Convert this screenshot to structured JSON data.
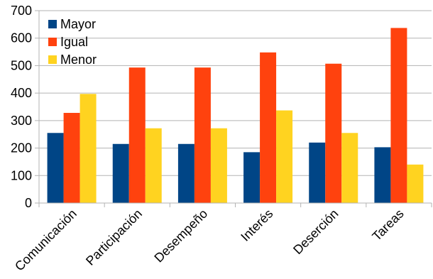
{
  "chart_data": {
    "type": "bar",
    "categories": [
      "Comunicación",
      "Participación",
      "Desempeño",
      "Interés",
      "Deserción",
      "Tareas"
    ],
    "series": [
      {
        "name": "Mayor",
        "color": "#004586",
        "values": [
          255,
          215,
          215,
          185,
          220,
          203
        ]
      },
      {
        "name": "Igual",
        "color": "#ff420e",
        "values": [
          328,
          493,
          493,
          548,
          507,
          637
        ]
      },
      {
        "name": "Menor",
        "color": "#ffd320",
        "values": [
          397,
          272,
          272,
          337,
          255,
          140
        ]
      }
    ],
    "title": "",
    "xlabel": "",
    "ylabel": "",
    "ylim": [
      0,
      700
    ],
    "yticks": [
      0,
      100,
      200,
      300,
      400,
      500,
      600,
      700
    ],
    "grid": true,
    "legend_position": "top-left"
  }
}
